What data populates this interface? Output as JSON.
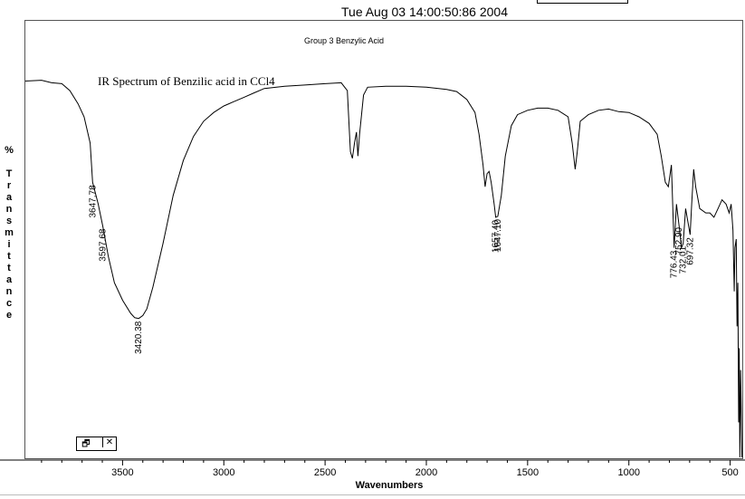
{
  "header": {
    "datetime": "Tue Aug 03 14:00:50:86 2004"
  },
  "controls": {
    "restore_icon": "restore-window-icon",
    "restore_glyph": "🗗",
    "close_icon": "close-icon",
    "close_glyph": "✕"
  },
  "chart_data": {
    "type": "line",
    "subtitle": "Group 3 Benzylic Acid",
    "title": "IR Spectrum of Benzilic acid in CCl4",
    "xlabel": "Wavenumbers",
    "ylabel": "% Transmittance",
    "x_reversed": true,
    "xlim": [
      3980,
      440
    ],
    "ylim": [
      0,
      100
    ],
    "grid": false,
    "x_ticks": [
      3500,
      3000,
      2500,
      2000,
      1500,
      1000,
      500
    ],
    "series": [
      {
        "color": "#000000",
        "points": [
          [
            3980,
            86.2
          ],
          [
            3900,
            86.4
          ],
          [
            3850,
            85.8
          ],
          [
            3800,
            85.6
          ],
          [
            3760,
            84.0
          ],
          [
            3720,
            81.0
          ],
          [
            3690,
            78.0
          ],
          [
            3660,
            72.0
          ],
          [
            3647.78,
            63.0
          ],
          [
            3620,
            58.0
          ],
          [
            3597.68,
            53.0
          ],
          [
            3570,
            46.0
          ],
          [
            3540,
            40.0
          ],
          [
            3500,
            36.0
          ],
          [
            3460,
            33.0
          ],
          [
            3440,
            32.0
          ],
          [
            3420.38,
            31.8
          ],
          [
            3400,
            32.5
          ],
          [
            3380,
            34.0
          ],
          [
            3350,
            39.0
          ],
          [
            3300,
            49.0
          ],
          [
            3250,
            60.0
          ],
          [
            3200,
            68.0
          ],
          [
            3150,
            73.5
          ],
          [
            3100,
            77.0
          ],
          [
            3050,
            79.0
          ],
          [
            3000,
            80.5
          ],
          [
            2950,
            81.5
          ],
          [
            2900,
            82.5
          ],
          [
            2850,
            83.5
          ],
          [
            2800,
            84.5
          ],
          [
            2700,
            85.0
          ],
          [
            2600,
            85.3
          ],
          [
            2500,
            85.6
          ],
          [
            2420,
            85.8
          ],
          [
            2390,
            84.0
          ],
          [
            2375,
            70.0
          ],
          [
            2365,
            68.5
          ],
          [
            2355,
            72.0
          ],
          [
            2345,
            74.5
          ],
          [
            2338,
            69.0
          ],
          [
            2330,
            74.0
          ],
          [
            2310,
            83.0
          ],
          [
            2290,
            84.8
          ],
          [
            2200,
            85.0
          ],
          [
            2100,
            85.0
          ],
          [
            2000,
            84.8
          ],
          [
            1900,
            84.3
          ],
          [
            1850,
            83.8
          ],
          [
            1800,
            82.0
          ],
          [
            1760,
            79.0
          ],
          [
            1740,
            74.0
          ],
          [
            1720,
            67.0
          ],
          [
            1710,
            62.0
          ],
          [
            1700,
            65.0
          ],
          [
            1690,
            65.5
          ],
          [
            1680,
            63.0
          ],
          [
            1665,
            58.0
          ],
          [
            1657.4,
            55.0
          ],
          [
            1647.1,
            55.2
          ],
          [
            1630,
            60.0
          ],
          [
            1610,
            69.0
          ],
          [
            1580,
            76.0
          ],
          [
            1550,
            78.5
          ],
          [
            1500,
            79.5
          ],
          [
            1450,
            80.0
          ],
          [
            1400,
            80.0
          ],
          [
            1350,
            79.5
          ],
          [
            1300,
            78.0
          ],
          [
            1280,
            72.0
          ],
          [
            1265,
            66.0
          ],
          [
            1255,
            70.0
          ],
          [
            1240,
            77.0
          ],
          [
            1200,
            78.5
          ],
          [
            1150,
            79.5
          ],
          [
            1100,
            79.8
          ],
          [
            1050,
            79.2
          ],
          [
            1000,
            79.0
          ],
          [
            950,
            78.0
          ],
          [
            900,
            76.5
          ],
          [
            860,
            74.0
          ],
          [
            840,
            69.0
          ],
          [
            820,
            63.0
          ],
          [
            805,
            62.0
          ],
          [
            790,
            67.0
          ],
          [
            776.43,
            48.0
          ],
          [
            765,
            58.0
          ],
          [
            752,
            53.0
          ],
          [
            740,
            48.0
          ],
          [
            732.01,
            49.0
          ],
          [
            720,
            57.0
          ],
          [
            697.32,
            51.0
          ],
          [
            690,
            58.0
          ],
          [
            680,
            66.0
          ],
          [
            670,
            62.0
          ],
          [
            650,
            57.0
          ],
          [
            620,
            56.0
          ],
          [
            600,
            56.0
          ],
          [
            580,
            55.0
          ],
          [
            560,
            57.0
          ],
          [
            540,
            59.0
          ],
          [
            520,
            58.0
          ],
          [
            505,
            56.0
          ],
          [
            495,
            58.0
          ],
          [
            486,
            52.0
          ],
          [
            480,
            38.0
          ],
          [
            476,
            48.0
          ],
          [
            470,
            50.0
          ],
          [
            466,
            30.0
          ],
          [
            462,
            40.0
          ],
          [
            458,
            8.0
          ],
          [
            455,
            25.0
          ],
          [
            452,
            0.0
          ],
          [
            448,
            20.0
          ],
          [
            445,
            10.0
          ],
          [
            442,
            0.0
          ]
        ]
      }
    ],
    "peaks": [
      {
        "x": 3647.78,
        "label": "3647.78"
      },
      {
        "x": 3597.68,
        "label": "3597.68"
      },
      {
        "x": 3420.38,
        "label": "3420.38"
      },
      {
        "x": 1657.4,
        "label": "1657.40"
      },
      {
        "x": 1647.1,
        "label": "1647.10"
      },
      {
        "x": 776.43,
        "label": "776.43"
      },
      {
        "x": 752.9,
        "label": "752.90"
      },
      {
        "x": 732.01,
        "label": "732.01"
      },
      {
        "x": 697.32,
        "label": "697.32"
      }
    ]
  }
}
